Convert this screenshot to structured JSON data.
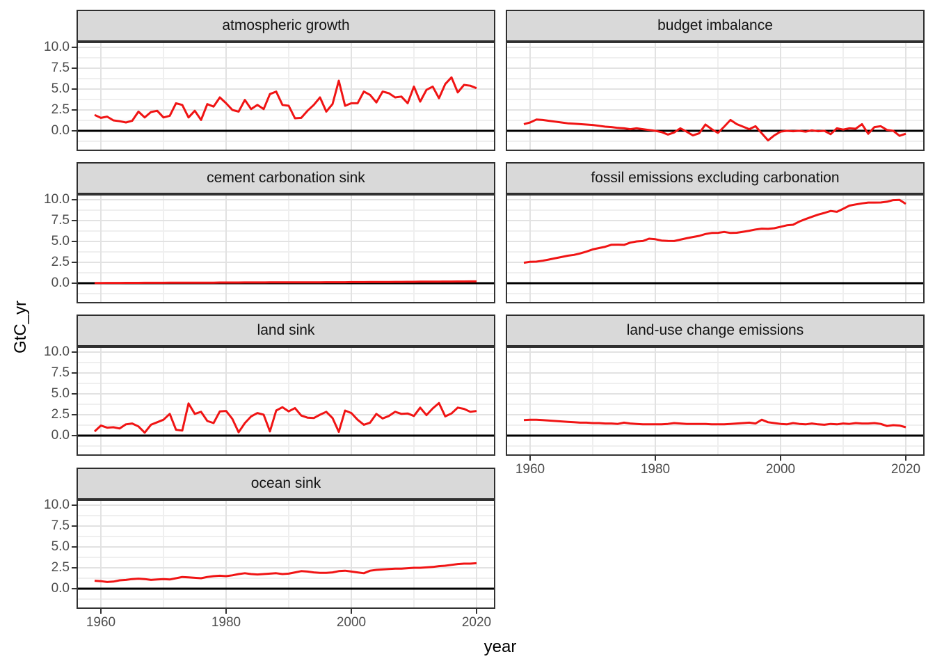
{
  "figure": {
    "kind": "ggplot-style faceted line chart",
    "interactive": false
  },
  "chart_data": {
    "type": "line",
    "title": "",
    "xlabel": "year",
    "ylabel": "GtC_yr",
    "x_start": 1959,
    "x_end": 2020,
    "x_ticks": [
      "1960",
      "1980",
      "2000",
      "2020"
    ],
    "x_tick_values": [
      1960,
      1980,
      2000,
      2020
    ],
    "x_minor_values": [
      1970,
      1990,
      2010
    ],
    "y_ticks": [
      "10.0",
      "7.5",
      "5.0",
      "2.5",
      "0.0"
    ],
    "y_tick_values": [
      10,
      7.5,
      5,
      2.5,
      0
    ],
    "y_minor_values": [
      8.75,
      6.25,
      3.75,
      1.25,
      -1.25
    ],
    "ylim": [
      -2.4,
      10.7
    ],
    "grid": "major+minor",
    "legend": "none",
    "reference_line_y": 0,
    "colors": {
      "line": "#f01414",
      "zero_line": "#000000",
      "strip_fill": "#d9d9d9",
      "strip_border": "#2e2e2e",
      "panel_border": "#333333",
      "grid_major": "#e2e2e2",
      "grid_minor": "#efefef",
      "axis_text": "#4d4d4d",
      "tick_mark": "#333333",
      "strip_text": "#141414",
      "background": "#ffffff"
    },
    "facets": [
      {
        "title": "atmospheric growth",
        "values": [
          1.9,
          1.55,
          1.7,
          1.25,
          1.15,
          1.0,
          1.2,
          2.3,
          1.6,
          2.25,
          2.4,
          1.6,
          1.8,
          3.3,
          3.1,
          1.6,
          2.4,
          1.3,
          3.2,
          2.9,
          4.0,
          3.3,
          2.5,
          2.3,
          3.7,
          2.6,
          3.1,
          2.6,
          4.4,
          4.7,
          3.1,
          3.0,
          1.5,
          1.55,
          2.4,
          3.1,
          4.0,
          2.3,
          3.2,
          6.0,
          3.0,
          3.3,
          3.3,
          4.7,
          4.3,
          3.4,
          4.7,
          4.5,
          4.0,
          4.1,
          3.3,
          5.3,
          3.5,
          4.9,
          5.3,
          3.9,
          5.6,
          6.4,
          4.6,
          5.5,
          5.4,
          5.1
        ]
      },
      {
        "title": "budget imbalance",
        "values": [
          0.8,
          1.0,
          1.35,
          1.3,
          1.2,
          1.1,
          1.0,
          0.9,
          0.85,
          0.8,
          0.75,
          0.7,
          0.6,
          0.5,
          0.45,
          0.35,
          0.3,
          0.2,
          0.3,
          0.2,
          0.1,
          0.0,
          -0.15,
          -0.45,
          -0.2,
          0.3,
          -0.1,
          -0.55,
          -0.3,
          0.75,
          0.2,
          -0.25,
          0.5,
          1.3,
          0.8,
          0.5,
          0.2,
          0.55,
          -0.3,
          -1.15,
          -0.55,
          -0.1,
          0.0,
          -0.05,
          0.0,
          -0.1,
          0.05,
          -0.05,
          0.0,
          -0.4,
          0.3,
          0.15,
          0.3,
          0.25,
          0.8,
          -0.35,
          0.45,
          0.55,
          0.1,
          0.0,
          -0.6,
          -0.35
        ]
      },
      {
        "title": "cement carbonation sink",
        "values": [
          0.02,
          0.02,
          0.03,
          0.03,
          0.03,
          0.04,
          0.04,
          0.04,
          0.05,
          0.05,
          0.05,
          0.05,
          0.06,
          0.06,
          0.06,
          0.06,
          0.07,
          0.07,
          0.07,
          0.07,
          0.08,
          0.08,
          0.08,
          0.08,
          0.09,
          0.09,
          0.09,
          0.09,
          0.1,
          0.1,
          0.1,
          0.1,
          0.1,
          0.11,
          0.11,
          0.11,
          0.11,
          0.12,
          0.12,
          0.12,
          0.12,
          0.13,
          0.13,
          0.13,
          0.14,
          0.14,
          0.15,
          0.15,
          0.16,
          0.16,
          0.17,
          0.17,
          0.18,
          0.18,
          0.19,
          0.19,
          0.2,
          0.2,
          0.21,
          0.21,
          0.22,
          0.22
        ]
      },
      {
        "title": "fossil emissions excluding carbonation",
        "values": [
          2.45,
          2.57,
          2.58,
          2.69,
          2.83,
          2.99,
          3.13,
          3.29,
          3.39,
          3.57,
          3.78,
          4.05,
          4.21,
          4.37,
          4.61,
          4.62,
          4.59,
          4.86,
          5.0,
          5.05,
          5.33,
          5.27,
          5.11,
          5.07,
          5.05,
          5.22,
          5.38,
          5.53,
          5.67,
          5.89,
          6.02,
          6.03,
          6.14,
          6.02,
          6.04,
          6.16,
          6.28,
          6.43,
          6.53,
          6.51,
          6.58,
          6.76,
          6.93,
          7.0,
          7.38,
          7.68,
          7.95,
          8.22,
          8.42,
          8.65,
          8.55,
          8.91,
          9.29,
          9.43,
          9.56,
          9.66,
          9.66,
          9.67,
          9.76,
          9.95,
          9.98,
          9.5
        ]
      },
      {
        "title": "land sink",
        "values": [
          0.5,
          1.2,
          0.95,
          1.0,
          0.85,
          1.35,
          1.45,
          1.1,
          0.35,
          1.3,
          1.6,
          1.9,
          2.6,
          0.7,
          0.6,
          3.85,
          2.6,
          2.85,
          1.75,
          1.5,
          2.9,
          2.95,
          2.0,
          0.4,
          1.5,
          2.3,
          2.7,
          2.5,
          0.5,
          3.0,
          3.4,
          2.9,
          3.3,
          2.4,
          2.15,
          2.1,
          2.5,
          2.85,
          2.1,
          0.45,
          3.0,
          2.7,
          1.9,
          1.3,
          1.55,
          2.6,
          2.05,
          2.35,
          2.85,
          2.6,
          2.65,
          2.35,
          3.35,
          2.45,
          3.25,
          3.9,
          2.3,
          2.65,
          3.35,
          3.2,
          2.85,
          2.95
        ]
      },
      {
        "title": "land-use change emissions",
        "values": [
          1.85,
          1.9,
          1.9,
          1.85,
          1.8,
          1.75,
          1.7,
          1.65,
          1.6,
          1.55,
          1.55,
          1.5,
          1.5,
          1.45,
          1.45,
          1.4,
          1.55,
          1.45,
          1.4,
          1.35,
          1.35,
          1.35,
          1.35,
          1.4,
          1.5,
          1.45,
          1.4,
          1.4,
          1.4,
          1.4,
          1.35,
          1.35,
          1.35,
          1.4,
          1.45,
          1.5,
          1.55,
          1.45,
          1.9,
          1.6,
          1.5,
          1.4,
          1.35,
          1.5,
          1.4,
          1.35,
          1.45,
          1.35,
          1.3,
          1.4,
          1.35,
          1.45,
          1.4,
          1.5,
          1.45,
          1.45,
          1.5,
          1.4,
          1.15,
          1.25,
          1.2,
          1.0
        ]
      },
      {
        "title": "ocean sink",
        "values": [
          0.95,
          0.9,
          0.8,
          0.85,
          1.0,
          1.05,
          1.15,
          1.2,
          1.15,
          1.05,
          1.1,
          1.15,
          1.1,
          1.25,
          1.4,
          1.35,
          1.3,
          1.25,
          1.4,
          1.5,
          1.55,
          1.5,
          1.6,
          1.75,
          1.85,
          1.75,
          1.7,
          1.75,
          1.8,
          1.85,
          1.75,
          1.8,
          1.95,
          2.1,
          2.05,
          1.95,
          1.9,
          1.9,
          1.95,
          2.1,
          2.15,
          2.05,
          1.95,
          1.85,
          2.15,
          2.25,
          2.3,
          2.35,
          2.4,
          2.4,
          2.45,
          2.5,
          2.5,
          2.55,
          2.6,
          2.7,
          2.75,
          2.85,
          2.95,
          3.0,
          3.0,
          3.05
        ]
      }
    ]
  }
}
